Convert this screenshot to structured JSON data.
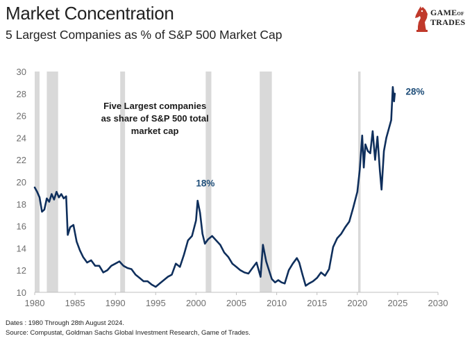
{
  "header": {
    "title": "Market Concentration",
    "subtitle": "5 Largest Companies as % of S&P 500 Market Cap"
  },
  "logo": {
    "line1": "GAME",
    "line1_small": "OF",
    "line2": "TRADES",
    "icon": "knight-chess-piece-icon",
    "color": "#c0392b"
  },
  "footer": {
    "dates": "Dates : 1980 Through 28th August 2024.",
    "source": "Source: Compustat, Goldman Sachs Global Investment Research, Game of Trades."
  },
  "colors": {
    "line": "#0f2f5c",
    "recession": "#d9d9d9",
    "label": "#1f4e79"
  },
  "chart_data": {
    "type": "line",
    "title": "",
    "xlabel": "",
    "ylabel": "",
    "xlim": [
      1980,
      2030
    ],
    "ylim": [
      10,
      30
    ],
    "xticks": [
      1980,
      1985,
      1990,
      1995,
      2000,
      2005,
      2010,
      2015,
      2020,
      2025,
      2030
    ],
    "yticks": [
      10,
      12,
      14,
      16,
      18,
      20,
      22,
      24,
      26,
      28,
      30
    ],
    "grid": false,
    "recession_bands": [
      [
        1980.0,
        1980.6
      ],
      [
        1981.5,
        1982.9
      ],
      [
        1990.6,
        1991.2
      ],
      [
        2001.2,
        2001.9
      ],
      [
        2007.9,
        2009.4
      ],
      [
        2020.1,
        2020.4
      ]
    ],
    "annotations": [
      {
        "text_lines": [
          "Five Largest companies",
          "as share of S&P 500 total",
          "market cap"
        ],
        "x": 1994.9,
        "y": 26.6
      },
      {
        "text": "18%",
        "x": 2000.0,
        "y": 19.9
      },
      {
        "text": "28%",
        "x": 2026.0,
        "y": 28.2
      }
    ],
    "series": [
      {
        "name": "",
        "x": [
          1980.0,
          1980.3,
          1980.6,
          1980.9,
          1981.2,
          1981.5,
          1981.8,
          1982.1,
          1982.4,
          1982.7,
          1983.0,
          1983.3,
          1983.6,
          1983.9,
          1984.1,
          1984.4,
          1984.8,
          1985.2,
          1985.6,
          1986.0,
          1986.5,
          1987.0,
          1987.5,
          1988.0,
          1988.5,
          1989.0,
          1989.5,
          1990.0,
          1990.5,
          1991.0,
          1991.5,
          1992.0,
          1992.5,
          1993.0,
          1993.5,
          1994.0,
          1994.5,
          1995.0,
          1995.5,
          1996.0,
          1996.5,
          1997.0,
          1997.5,
          1998.0,
          1998.5,
          1999.0,
          1999.5,
          2000.0,
          2000.2,
          2000.5,
          2000.8,
          2001.1,
          2001.5,
          2002.0,
          2002.5,
          2003.0,
          2003.5,
          2004.0,
          2004.5,
          2005.0,
          2005.5,
          2006.0,
          2006.5,
          2007.0,
          2007.5,
          2008.0,
          2008.3,
          2008.7,
          2009.0,
          2009.4,
          2009.8,
          2010.2,
          2010.6,
          2011.0,
          2011.5,
          2012.0,
          2012.5,
          2012.8,
          2013.2,
          2013.6,
          2014.0,
          2014.5,
          2015.0,
          2015.5,
          2016.0,
          2016.5,
          2017.0,
          2017.5,
          2018.0,
          2018.5,
          2019.0,
          2019.5,
          2020.0,
          2020.3,
          2020.6,
          2020.8,
          2021.0,
          2021.3,
          2021.6,
          2021.9,
          2022.2,
          2022.5,
          2022.8,
          2023.0,
          2023.3,
          2023.6,
          2023.9,
          2024.2,
          2024.4,
          2024.55,
          2024.65
        ],
        "values": [
          19.5,
          19.1,
          18.6,
          17.3,
          17.5,
          18.5,
          18.2,
          18.9,
          18.4,
          19.1,
          18.6,
          18.9,
          18.5,
          18.7,
          15.2,
          15.9,
          16.1,
          14.6,
          13.8,
          13.2,
          12.7,
          12.9,
          12.4,
          12.4,
          11.8,
          12.0,
          12.4,
          12.6,
          12.8,
          12.4,
          12.2,
          12.1,
          11.6,
          11.3,
          11.0,
          11.0,
          10.7,
          10.5,
          10.8,
          11.1,
          11.4,
          11.6,
          12.6,
          12.3,
          13.4,
          14.7,
          15.1,
          16.5,
          18.3,
          17.2,
          15.3,
          14.4,
          14.8,
          15.1,
          14.7,
          14.3,
          13.6,
          13.2,
          12.6,
          12.3,
          12.0,
          11.8,
          11.7,
          12.2,
          12.7,
          11.4,
          14.3,
          12.8,
          12.1,
          11.2,
          10.9,
          11.1,
          10.9,
          10.8,
          12.0,
          12.6,
          13.1,
          12.7,
          11.6,
          10.6,
          10.8,
          11.0,
          11.3,
          11.8,
          11.5,
          12.1,
          14.1,
          14.9,
          15.3,
          15.9,
          16.4,
          17.7,
          19.1,
          21.1,
          24.2,
          21.3,
          23.4,
          22.8,
          22.6,
          24.6,
          22.0,
          24.1,
          21.0,
          19.3,
          22.8,
          24.0,
          24.8,
          25.6,
          28.6,
          27.3,
          28.0
        ]
      }
    ]
  }
}
